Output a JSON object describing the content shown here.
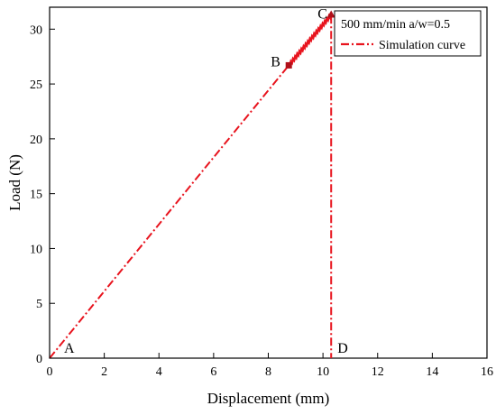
{
  "chart_data": {
    "type": "line",
    "xlabel": "Displacement (mm)",
    "ylabel": "Load (N)",
    "xlim": [
      0,
      16
    ],
    "ylim": [
      0,
      32
    ],
    "x_ticks": [
      0,
      2,
      4,
      6,
      8,
      10,
      12,
      14,
      16
    ],
    "y_ticks": [
      0,
      5,
      10,
      15,
      20,
      25,
      30
    ],
    "grid": false,
    "legend_position": "top-right",
    "color": "#e8141e",
    "marker_color": "#b0101a",
    "legend": {
      "title": "500 mm/min a/w=0.5",
      "entry": "Simulation curve"
    },
    "series": [
      {
        "name": "Simulation curve",
        "style": "dash-dot",
        "x": [
          0,
          8.75,
          10.3,
          10.3
        ],
        "y": [
          0,
          26.7,
          31.3,
          0
        ]
      }
    ],
    "points": [
      {
        "label": "A",
        "x": 0,
        "y": 0,
        "marker": "none"
      },
      {
        "label": "B",
        "x": 8.75,
        "y": 26.7,
        "marker": "square"
      },
      {
        "label": "C",
        "x": 10.3,
        "y": 31.3,
        "marker": "triangle"
      },
      {
        "label": "D",
        "x": 10.3,
        "y": 0,
        "marker": "none"
      }
    ]
  }
}
